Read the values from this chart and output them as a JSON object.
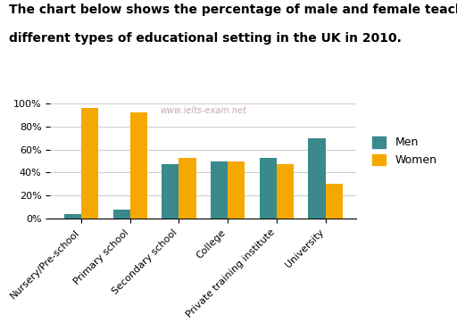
{
  "categories": [
    "Nursery/Pre-school",
    "Primary school",
    "Secondary school",
    "College",
    "Private training institute",
    "University"
  ],
  "men_values": [
    4,
    8,
    47,
    50,
    53,
    70
  ],
  "women_values": [
    96,
    92,
    53,
    50,
    47,
    30
  ],
  "men_color": "#3a8a8c",
  "women_color": "#f5a800",
  "title_line1": "The chart below shows the percentage of male and female teachers in six",
  "title_line2": "different types of educational setting in the UK in 2010.",
  "watermark": "www.ielts-exam.net",
  "ylim": [
    0,
    100
  ],
  "yticks": [
    0,
    20,
    40,
    60,
    80,
    100
  ],
  "ytick_labels": [
    "0%",
    "20%",
    "40%",
    "60%",
    "80%",
    "100%"
  ],
  "legend_men": "Men",
  "legend_women": "Women",
  "bar_width": 0.35,
  "title_fontsize": 10,
  "tick_fontsize": 8,
  "legend_fontsize": 9
}
